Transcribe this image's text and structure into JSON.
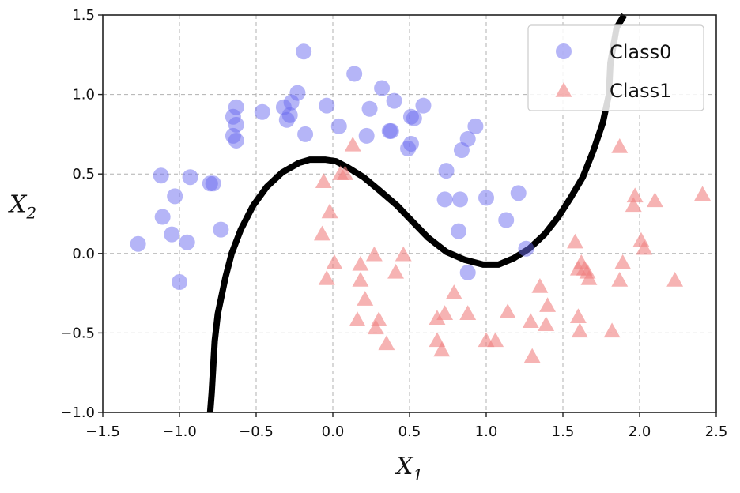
{
  "chart_data": {
    "type": "scatter",
    "title": "",
    "xlabel": {
      "main": "X",
      "sub": "1"
    },
    "ylabel": {
      "main": "X",
      "sub": "2"
    },
    "xlim": [
      -1.5,
      2.5
    ],
    "ylim": [
      -1.0,
      1.5
    ],
    "xticks": [
      -1.5,
      -1.0,
      -0.5,
      0.0,
      0.5,
      1.0,
      1.5,
      2.0,
      2.5
    ],
    "xtick_labels": [
      "−1.5",
      "−1.0",
      "−0.5",
      "0.0",
      "0.5",
      "1.0",
      "1.5",
      "2.0",
      "2.5"
    ],
    "yticks": [
      -1.0,
      -0.5,
      0.0,
      0.5,
      1.0,
      1.5
    ],
    "ytick_labels": [
      "−1.0",
      "−0.5",
      "0.0",
      "0.5",
      "1.0",
      "1.5"
    ],
    "grid": true,
    "legend_position": "top-right",
    "series": [
      {
        "name": "Class0",
        "marker": "circle",
        "color": "#6b6bf0",
        "points": [
          [
            -0.19,
            1.27
          ],
          [
            -0.23,
            1.01
          ],
          [
            -0.27,
            0.95
          ],
          [
            -0.32,
            0.92
          ],
          [
            -0.28,
            0.87
          ],
          [
            -0.3,
            0.84
          ],
          [
            -0.46,
            0.89
          ],
          [
            -0.63,
            0.92
          ],
          [
            -0.65,
            0.86
          ],
          [
            -0.63,
            0.81
          ],
          [
            -0.65,
            0.74
          ],
          [
            -0.63,
            0.71
          ],
          [
            -0.18,
            0.75
          ],
          [
            -0.04,
            0.93
          ],
          [
            0.04,
            0.8
          ],
          [
            0.14,
            1.13
          ],
          [
            0.24,
            0.91
          ],
          [
            0.32,
            1.04
          ],
          [
            0.4,
            0.96
          ],
          [
            0.38,
            0.77
          ],
          [
            0.37,
            0.77
          ],
          [
            0.22,
            0.74
          ],
          [
            0.53,
            0.85
          ],
          [
            0.51,
            0.86
          ],
          [
            0.59,
            0.93
          ],
          [
            0.51,
            0.69
          ],
          [
            0.49,
            0.66
          ],
          [
            0.93,
            0.8
          ],
          [
            0.88,
            0.72
          ],
          [
            0.84,
            0.65
          ],
          [
            0.74,
            0.52
          ],
          [
            0.73,
            0.34
          ],
          [
            0.83,
            0.34
          ],
          [
            0.82,
            0.14
          ],
          [
            1.0,
            0.35
          ],
          [
            1.21,
            0.38
          ],
          [
            1.13,
            0.21
          ],
          [
            1.26,
            0.03
          ],
          [
            0.88,
            -0.12
          ],
          [
            -1.12,
            0.49
          ],
          [
            -0.93,
            0.48
          ],
          [
            -1.03,
            0.36
          ],
          [
            -0.8,
            0.44
          ],
          [
            -0.78,
            0.44
          ],
          [
            -1.11,
            0.23
          ],
          [
            -1.05,
            0.12
          ],
          [
            -0.95,
            0.07
          ],
          [
            -1.27,
            0.06
          ],
          [
            -0.73,
            0.15
          ],
          [
            -1.0,
            -0.18
          ]
        ]
      },
      {
        "name": "Class1",
        "marker": "triangle",
        "color": "#f08080",
        "points": [
          [
            0.13,
            0.68
          ],
          [
            0.05,
            0.5
          ],
          [
            0.08,
            0.5
          ],
          [
            -0.06,
            0.45
          ],
          [
            -0.02,
            0.26
          ],
          [
            -0.07,
            0.12
          ],
          [
            0.01,
            -0.06
          ],
          [
            -0.04,
            -0.16
          ],
          [
            0.18,
            -0.07
          ],
          [
            0.27,
            -0.01
          ],
          [
            0.46,
            -0.01
          ],
          [
            0.18,
            -0.17
          ],
          [
            0.41,
            -0.12
          ],
          [
            0.21,
            -0.29
          ],
          [
            0.16,
            -0.42
          ],
          [
            0.3,
            -0.42
          ],
          [
            0.28,
            -0.47
          ],
          [
            0.35,
            -0.57
          ],
          [
            0.68,
            -0.41
          ],
          [
            0.73,
            -0.38
          ],
          [
            0.79,
            -0.25
          ],
          [
            0.88,
            -0.38
          ],
          [
            0.68,
            -0.55
          ],
          [
            0.71,
            -0.61
          ],
          [
            1.0,
            -0.55
          ],
          [
            1.06,
            -0.55
          ],
          [
            1.14,
            -0.37
          ],
          [
            1.29,
            -0.43
          ],
          [
            1.35,
            -0.21
          ],
          [
            1.4,
            -0.33
          ],
          [
            1.39,
            -0.45
          ],
          [
            1.3,
            -0.65
          ],
          [
            1.58,
            0.07
          ],
          [
            1.6,
            -0.1
          ],
          [
            1.62,
            -0.06
          ],
          [
            1.64,
            -0.1
          ],
          [
            1.66,
            -0.12
          ],
          [
            1.67,
            -0.16
          ],
          [
            1.6,
            -0.4
          ],
          [
            1.61,
            -0.49
          ],
          [
            1.82,
            -0.49
          ],
          [
            1.87,
            0.67
          ],
          [
            1.89,
            -0.06
          ],
          [
            1.87,
            -0.17
          ],
          [
            1.97,
            0.36
          ],
          [
            1.96,
            0.3
          ],
          [
            2.01,
            0.08
          ],
          [
            2.03,
            0.03
          ],
          [
            2.1,
            0.33
          ],
          [
            2.23,
            -0.17
          ],
          [
            2.41,
            0.37
          ]
        ]
      }
    ],
    "decision_boundary": {
      "color": "#000000",
      "points": [
        [
          -0.8,
          -1.0
        ],
        [
          -0.79,
          -0.88
        ],
        [
          -0.77,
          -0.55
        ],
        [
          -0.75,
          -0.38
        ],
        [
          -0.7,
          -0.15
        ],
        [
          -0.66,
          0.0
        ],
        [
          -0.6,
          0.15
        ],
        [
          -0.52,
          0.3
        ],
        [
          -0.43,
          0.42
        ],
        [
          -0.33,
          0.51
        ],
        [
          -0.22,
          0.57
        ],
        [
          -0.15,
          0.59
        ],
        [
          -0.05,
          0.59
        ],
        [
          0.02,
          0.58
        ],
        [
          0.1,
          0.54
        ],
        [
          0.2,
          0.48
        ],
        [
          0.3,
          0.4
        ],
        [
          0.42,
          0.3
        ],
        [
          0.52,
          0.2
        ],
        [
          0.62,
          0.1
        ],
        [
          0.74,
          0.01
        ],
        [
          0.86,
          -0.04
        ],
        [
          0.98,
          -0.07
        ],
        [
          1.08,
          -0.07
        ],
        [
          1.18,
          -0.03
        ],
        [
          1.28,
          0.03
        ],
        [
          1.38,
          0.12
        ],
        [
          1.47,
          0.23
        ],
        [
          1.55,
          0.35
        ],
        [
          1.63,
          0.48
        ],
        [
          1.7,
          0.65
        ],
        [
          1.76,
          0.82
        ],
        [
          1.8,
          1.0
        ],
        [
          1.81,
          1.2
        ],
        [
          1.85,
          1.42
        ],
        [
          1.9,
          1.5
        ]
      ]
    }
  }
}
